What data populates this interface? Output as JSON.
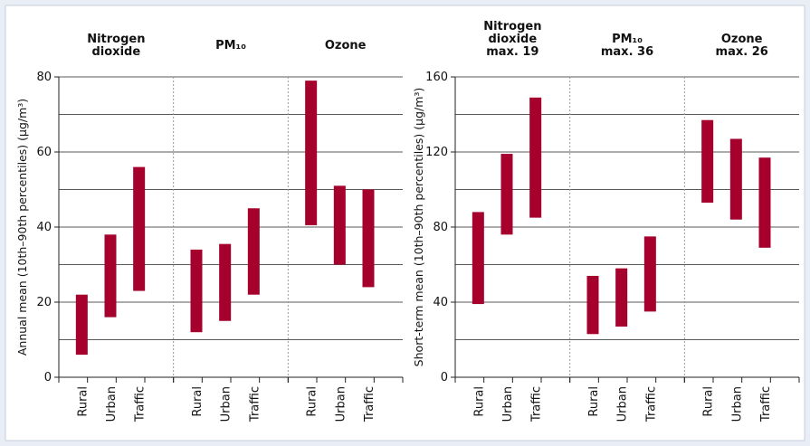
{
  "charts": [
    {
      "type": "range_bar",
      "y_label": "Annual mean (10th–90th percentiles) (µg/m³)",
      "color": "#a6002c",
      "ylim": [
        0,
        80
      ],
      "yticks": [
        0,
        20,
        40,
        60,
        80
      ],
      "minor_yticks": [
        10,
        30,
        50,
        70
      ],
      "grid": true,
      "groups": [
        {
          "label_lines": [
            "Nitrogen",
            "dioxide"
          ],
          "categories": [
            "Rural",
            "Urban",
            "Traffic"
          ],
          "low": [
            6,
            16,
            23
          ],
          "high": [
            22,
            38,
            56
          ]
        },
        {
          "label_lines": [
            "PM₁₀"
          ],
          "categories": [
            "Rural",
            "Urban",
            "Traffic"
          ],
          "low": [
            12,
            15,
            22
          ],
          "high": [
            34,
            35.5,
            45
          ]
        },
        {
          "label_lines": [
            "Ozone"
          ],
          "categories": [
            "Rural",
            "Urban",
            "Traffic"
          ],
          "low": [
            40.5,
            30,
            24
          ],
          "high": [
            79,
            51,
            50
          ]
        }
      ]
    },
    {
      "type": "range_bar",
      "y_label": "Short-term mean (10th–90th percentiles) (µg/m³)",
      "color": "#a6002c",
      "ylim": [
        0,
        160
      ],
      "yticks": [
        0,
        40,
        80,
        120,
        160
      ],
      "minor_yticks": [
        20,
        60,
        100,
        140
      ],
      "grid": true,
      "groups": [
        {
          "label_lines": [
            "Nitrogen",
            "dioxide",
            "max. 19"
          ],
          "categories": [
            "Rural",
            "Urban",
            "Traffic"
          ],
          "low": [
            39,
            76,
            85
          ],
          "high": [
            88,
            119,
            149
          ]
        },
        {
          "label_lines": [
            "PM₁₀",
            "max. 36"
          ],
          "categories": [
            "Rural",
            "Urban",
            "Traffic"
          ],
          "low": [
            23,
            27,
            35
          ],
          "high": [
            54,
            58,
            75
          ]
        },
        {
          "label_lines": [
            "Ozone",
            "max. 26"
          ],
          "categories": [
            "Rural",
            "Urban",
            "Traffic"
          ],
          "low": [
            93,
            84,
            69
          ],
          "high": [
            137,
            127,
            117
          ]
        }
      ]
    }
  ]
}
